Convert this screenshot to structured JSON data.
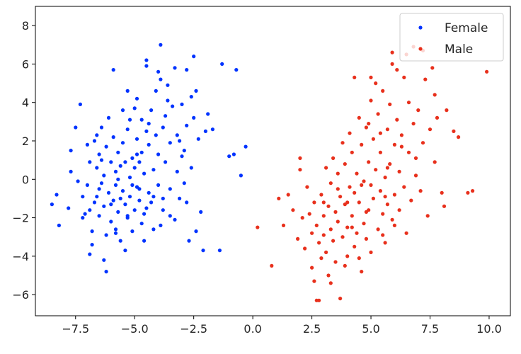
{
  "chart_data": {
    "type": "scatter",
    "title": "",
    "xlabel": "",
    "ylabel": "",
    "xlim": [
      -9.2,
      10.9
    ],
    "ylim": [
      -7.1,
      9.0
    ],
    "xticks": [
      -7.5,
      -5.0,
      -2.5,
      0.0,
      2.5,
      5.0,
      7.5,
      10.0
    ],
    "xtick_labels": [
      "−7.5",
      "−5.0",
      "−2.5",
      "0.0",
      "2.5",
      "5.0",
      "7.5",
      "10.0"
    ],
    "yticks": [
      -6,
      -4,
      -2,
      0,
      2,
      4,
      6,
      8
    ],
    "ytick_labels": [
      "−6",
      "−4",
      "−2",
      "0",
      "2",
      "4",
      "6",
      "8"
    ],
    "grid": false,
    "legend": "top-right",
    "series": [
      {
        "name": "Female",
        "color": "#0033ff",
        "marker": "circle",
        "points": [
          [
            -8.5,
            -1.3
          ],
          [
            -8.3,
            -0.8
          ],
          [
            -8.2,
            -2.4
          ],
          [
            -7.8,
            -1.5
          ],
          [
            -7.7,
            1.5
          ],
          [
            -7.7,
            0.4
          ],
          [
            -7.4,
            -0.1
          ],
          [
            -7.3,
            3.9
          ],
          [
            -7.2,
            -0.9
          ],
          [
            -7.1,
            -1.8
          ],
          [
            -7.0,
            -0.3
          ],
          [
            -7.0,
            1.8
          ],
          [
            -6.9,
            0.9
          ],
          [
            -6.9,
            -1.6
          ],
          [
            -6.8,
            -2.7
          ],
          [
            -6.8,
            -3.4
          ],
          [
            -6.7,
            2.0
          ],
          [
            -6.7,
            -1.2
          ],
          [
            -6.6,
            0.6
          ],
          [
            -6.6,
            -0.9
          ],
          [
            -6.5,
            1.3
          ],
          [
            -6.5,
            -1.9
          ],
          [
            -6.4,
            2.7
          ],
          [
            -6.4,
            -0.2
          ],
          [
            -6.3,
            0.2
          ],
          [
            -6.3,
            -1.4
          ],
          [
            -6.2,
            -2.9
          ],
          [
            -6.2,
            1.7
          ],
          [
            -6.1,
            -0.7
          ],
          [
            -6.1,
            3.2
          ],
          [
            -6.0,
            0.9
          ],
          [
            -6.0,
            -2.2
          ],
          [
            -5.9,
            -1.1
          ],
          [
            -5.9,
            2.2
          ],
          [
            -5.9,
            5.7
          ],
          [
            -5.8,
            0.4
          ],
          [
            -5.8,
            -0.3
          ],
          [
            -5.8,
            -2.6
          ],
          [
            -5.7,
            1.4
          ],
          [
            -5.7,
            -1.7
          ],
          [
            -5.6,
            0.7
          ],
          [
            -5.6,
            -3.2
          ],
          [
            -5.5,
            3.6
          ],
          [
            -5.5,
            -0.6
          ],
          [
            -5.5,
            1.9
          ],
          [
            -5.4,
            0.9
          ],
          [
            -5.4,
            -1.3
          ],
          [
            -5.3,
            2.6
          ],
          [
            -5.3,
            -2.0
          ],
          [
            -5.3,
            4.6
          ],
          [
            -5.2,
            0.1
          ],
          [
            -5.2,
            -0.9
          ],
          [
            -5.1,
            1.1
          ],
          [
            -5.1,
            -2.7
          ],
          [
            -5.0,
            3.7
          ],
          [
            -5.0,
            0.6
          ],
          [
            -5.0,
            -1.6
          ],
          [
            -4.9,
            -0.4
          ],
          [
            -4.9,
            2.1
          ],
          [
            -4.9,
            4.2
          ],
          [
            -4.8,
            0.9
          ],
          [
            -4.8,
            -1.1
          ],
          [
            -4.7,
            -2.3
          ],
          [
            -4.7,
            1.4
          ],
          [
            -4.7,
            3.1
          ],
          [
            -4.6,
            0.3
          ],
          [
            -4.6,
            -1.8
          ],
          [
            -4.5,
            2.5
          ],
          [
            -4.5,
            5.9
          ],
          [
            -4.5,
            6.2
          ],
          [
            -4.4,
            -0.7
          ],
          [
            -4.4,
            1.8
          ],
          [
            -4.3,
            -1.2
          ],
          [
            -4.3,
            3.6
          ],
          [
            -4.2,
            0.5
          ],
          [
            -4.2,
            -2.6
          ],
          [
            -4.1,
            2.3
          ],
          [
            -4.1,
            4.6
          ],
          [
            -4.0,
            -0.3
          ],
          [
            -4.0,
            1.3
          ],
          [
            -3.9,
            5.2
          ],
          [
            -3.9,
            7.0
          ],
          [
            -3.8,
            -1.6
          ],
          [
            -3.8,
            2.7
          ],
          [
            -3.7,
            3.3
          ],
          [
            -3.7,
            0.9
          ],
          [
            -3.6,
            4.9
          ],
          [
            -3.5,
            -0.5
          ],
          [
            -3.5,
            1.9
          ],
          [
            -3.4,
            3.8
          ],
          [
            -3.3,
            -2.1
          ],
          [
            -3.3,
            5.8
          ],
          [
            -3.2,
            0.4
          ],
          [
            -3.2,
            2.3
          ],
          [
            -3.1,
            -1.0
          ],
          [
            -3.0,
            1.2
          ],
          [
            -3.0,
            3.9
          ],
          [
            -2.9,
            -0.2
          ],
          [
            -2.8,
            2.8
          ],
          [
            -2.8,
            5.7
          ],
          [
            -2.7,
            -3.2
          ],
          [
            -2.6,
            0.6
          ],
          [
            -2.6,
            4.3
          ],
          [
            -2.5,
            6.4
          ],
          [
            -2.5,
            3.2
          ],
          [
            -2.4,
            -2.7
          ],
          [
            -2.3,
            2.1
          ],
          [
            -2.2,
            -1.7
          ],
          [
            -2.1,
            -3.7
          ],
          [
            -2.0,
            2.5
          ],
          [
            -1.9,
            3.4
          ],
          [
            -1.4,
            -3.7
          ],
          [
            -1.3,
            6.0
          ],
          [
            -1.0,
            1.2
          ],
          [
            -0.8,
            1.3
          ],
          [
            -0.7,
            5.7
          ],
          [
            -0.5,
            0.2
          ],
          [
            -0.3,
            1.7
          ],
          [
            -6.3,
            -4.2
          ],
          [
            -6.2,
            -4.8
          ],
          [
            -6.9,
            -3.9
          ],
          [
            -5.4,
            -3.7
          ],
          [
            -4.6,
            -3.2
          ],
          [
            -3.9,
            -2.4
          ],
          [
            -2.8,
            -1.2
          ],
          [
            -3.5,
            -1.9
          ],
          [
            -5.8,
            -2.8
          ],
          [
            -6.5,
            -0.5
          ],
          [
            -7.2,
            -2.0
          ],
          [
            -4.2,
            -0.9
          ],
          [
            -5.1,
            -0.3
          ],
          [
            -5.6,
            -1.0
          ],
          [
            -4.8,
            -0.5
          ],
          [
            -3.1,
            2.0
          ],
          [
            -2.9,
            1.5
          ],
          [
            -4.4,
            2.9
          ],
          [
            -5.2,
            3.1
          ],
          [
            -6.6,
            2.3
          ],
          [
            -7.5,
            2.7
          ],
          [
            -3.6,
            4.1
          ],
          [
            -4.0,
            5.6
          ],
          [
            -2.4,
            4.6
          ],
          [
            -1.7,
            2.6
          ],
          [
            -6.0,
            -1.3
          ],
          [
            -5.3,
            -1.9
          ],
          [
            -4.5,
            -1.5
          ],
          [
            -3.8,
            -1.0
          ],
          [
            -5.7,
            0.0
          ],
          [
            -6.4,
            1.0
          ],
          [
            -4.9,
            1.3
          ]
        ]
      },
      {
        "name": "Male",
        "color": "#e8301c",
        "marker": "circle",
        "points": [
          [
            0.2,
            -2.5
          ],
          [
            0.8,
            -4.5
          ],
          [
            1.1,
            -1.0
          ],
          [
            1.3,
            -2.4
          ],
          [
            1.5,
            -0.8
          ],
          [
            1.7,
            -1.6
          ],
          [
            1.9,
            -3.1
          ],
          [
            2.0,
            0.5
          ],
          [
            2.0,
            1.1
          ],
          [
            2.1,
            -2.0
          ],
          [
            2.2,
            -3.6
          ],
          [
            2.3,
            -0.4
          ],
          [
            2.4,
            -1.8
          ],
          [
            2.5,
            -2.8
          ],
          [
            2.5,
            -4.6
          ],
          [
            2.6,
            -1.2
          ],
          [
            2.6,
            -5.3
          ],
          [
            2.7,
            -2.4
          ],
          [
            2.7,
            -6.3
          ],
          [
            2.8,
            -3.3
          ],
          [
            2.9,
            -0.8
          ],
          [
            2.9,
            -4.1
          ],
          [
            3.0,
            -1.9
          ],
          [
            3.0,
            -2.9
          ],
          [
            3.1,
            0.6
          ],
          [
            3.1,
            -3.8
          ],
          [
            3.2,
            -1.4
          ],
          [
            3.2,
            -5.0
          ],
          [
            3.3,
            -2.6
          ],
          [
            3.3,
            -0.2
          ],
          [
            3.4,
            1.1
          ],
          [
            3.4,
            -3.2
          ],
          [
            3.5,
            -1.7
          ],
          [
            3.5,
            -4.3
          ],
          [
            3.6,
            0.3
          ],
          [
            3.6,
            -2.2
          ],
          [
            3.7,
            -6.2
          ],
          [
            3.7,
            -0.9
          ],
          [
            3.8,
            1.9
          ],
          [
            3.8,
            -3.0
          ],
          [
            3.9,
            -1.3
          ],
          [
            3.9,
            0.8
          ],
          [
            4.0,
            -2.5
          ],
          [
            4.0,
            -4.0
          ],
          [
            4.1,
            2.4
          ],
          [
            4.1,
            -0.4
          ],
          [
            4.2,
            -1.9
          ],
          [
            4.2,
            1.4
          ],
          [
            4.3,
            -3.5
          ],
          [
            4.3,
            -0.7
          ],
          [
            4.4,
            0.3
          ],
          [
            4.4,
            -2.8
          ],
          [
            4.5,
            3.2
          ],
          [
            4.5,
            -1.2
          ],
          [
            4.6,
            1.8
          ],
          [
            4.6,
            -4.8
          ],
          [
            4.7,
            -0.1
          ],
          [
            4.7,
            -2.3
          ],
          [
            4.8,
            2.7
          ],
          [
            4.8,
            -3.1
          ],
          [
            4.9,
            0.9
          ],
          [
            4.9,
            -1.6
          ],
          [
            5.0,
            4.1
          ],
          [
            5.0,
            -0.3
          ],
          [
            5.0,
            -3.8
          ],
          [
            5.1,
            2.1
          ],
          [
            5.1,
            -1.0
          ],
          [
            5.2,
            5.0
          ],
          [
            5.2,
            0.5
          ],
          [
            5.3,
            -2.6
          ],
          [
            5.3,
            3.4
          ],
          [
            5.4,
            -0.6
          ],
          [
            5.4,
            1.4
          ],
          [
            5.5,
            -1.8
          ],
          [
            5.5,
            4.6
          ],
          [
            5.6,
            0.1
          ],
          [
            5.6,
            -3.3
          ],
          [
            5.7,
            2.6
          ],
          [
            5.7,
            -1.3
          ],
          [
            5.8,
            0.8
          ],
          [
            5.8,
            3.9
          ],
          [
            5.9,
            -2.1
          ],
          [
            5.9,
            6.0
          ],
          [
            6.0,
            1.8
          ],
          [
            6.0,
            -0.8
          ],
          [
            6.1,
            3.1
          ],
          [
            6.2,
            -1.6
          ],
          [
            6.2,
            0.4
          ],
          [
            6.3,
            2.3
          ],
          [
            6.4,
            5.3
          ],
          [
            6.4,
            -0.4
          ],
          [
            6.5,
            -2.8
          ],
          [
            6.6,
            1.4
          ],
          [
            6.6,
            4.0
          ],
          [
            6.7,
            -1.1
          ],
          [
            6.8,
            2.9
          ],
          [
            6.9,
            0.2
          ],
          [
            7.0,
            3.6
          ],
          [
            7.1,
            -0.6
          ],
          [
            7.2,
            1.9
          ],
          [
            7.3,
            5.2
          ],
          [
            7.4,
            -1.9
          ],
          [
            7.5,
            2.6
          ],
          [
            7.6,
            5.8
          ],
          [
            7.7,
            0.9
          ],
          [
            7.8,
            3.2
          ],
          [
            8.0,
            -0.7
          ],
          [
            8.1,
            -1.4
          ],
          [
            8.2,
            3.6
          ],
          [
            8.5,
            2.5
          ],
          [
            8.7,
            2.2
          ],
          [
            9.1,
            -0.7
          ],
          [
            9.3,
            -0.6
          ],
          [
            9.9,
            5.6
          ],
          [
            4.3,
            5.3
          ],
          [
            5.0,
            5.3
          ],
          [
            5.9,
            6.6
          ],
          [
            6.5,
            6.5
          ],
          [
            6.8,
            6.9
          ],
          [
            7.2,
            6.7
          ],
          [
            6.1,
            5.7
          ],
          [
            4.5,
            -4.1
          ],
          [
            3.9,
            -4.5
          ],
          [
            5.5,
            -2.9
          ],
          [
            3.3,
            -5.4
          ],
          [
            2.8,
            -6.3
          ],
          [
            4.8,
            -1.7
          ],
          [
            3.6,
            -0.5
          ],
          [
            4.2,
            -2.5
          ],
          [
            5.7,
            0.6
          ],
          [
            6.3,
            1.7
          ],
          [
            5.4,
            2.4
          ],
          [
            4.6,
            -0.3
          ],
          [
            3.0,
            -1.2
          ],
          [
            6.9,
            1.1
          ],
          [
            7.7,
            4.4
          ],
          [
            4.9,
            2.9
          ],
          [
            5.6,
            -0.9
          ],
          [
            6.0,
            -2.4
          ],
          [
            4.0,
            -1.2
          ]
        ]
      }
    ]
  }
}
